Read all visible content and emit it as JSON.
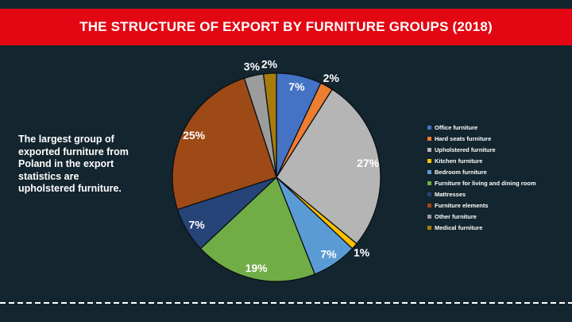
{
  "title": "THE STRUCTURE OF EXPORT BY FURNITURE GROUPS (2018)",
  "caption": {
    "text": "The largest group of exported furniture from Poland in the export statistics are upholstered furniture.",
    "lines": [
      "The largest group of",
      "exported furniture from",
      "Poland in the export",
      "statistics are",
      "upholstered furniture."
    ]
  },
  "colors": {
    "background": "#13252E",
    "banner": "#E30613",
    "text": "#FFFFFF",
    "slice_outline": "#0B1014",
    "divider": "#FFFFFF"
  },
  "chart_data": {
    "type": "pie",
    "title": "",
    "start_angle_deg": 0,
    "direction": "clockwise",
    "legend_position": "right",
    "slices": [
      {
        "label": "Office furniture",
        "value": 7,
        "pct_label": "7%",
        "color": "#4472C4",
        "label_inside": true
      },
      {
        "label": "Hard seats furniture",
        "value": 2,
        "pct_label": "2%",
        "color": "#ED7D31",
        "label_inside": false
      },
      {
        "label": "Upholstered furniture",
        "value": 27,
        "pct_label": "27%",
        "color": "#B5B5B5",
        "label_inside": true
      },
      {
        "label": "Kitchen furniture",
        "value": 1,
        "pct_label": "1%",
        "color": "#FFC000",
        "label_inside": false
      },
      {
        "label": "Bedroom furniture",
        "value": 7,
        "pct_label": "7%",
        "color": "#5B9BD5",
        "label_inside": true
      },
      {
        "label": "Furniture for living and dining room",
        "value": 19,
        "pct_label": "19%",
        "color": "#70AD47",
        "label_inside": true
      },
      {
        "label": "Mattresses",
        "value": 7,
        "pct_label": "7%",
        "color": "#264478",
        "label_inside": true
      },
      {
        "label": "Furniture elements",
        "value": 25,
        "pct_label": "25%",
        "color": "#9E4A16",
        "label_inside": true
      },
      {
        "label": "Other furniture",
        "value": 3,
        "pct_label": "3%",
        "color": "#9C9C9C",
        "label_inside": false
      },
      {
        "label": "Medical furniture",
        "value": 2,
        "pct_label": "2%",
        "color": "#A67C0B",
        "label_inside": false
      }
    ]
  }
}
